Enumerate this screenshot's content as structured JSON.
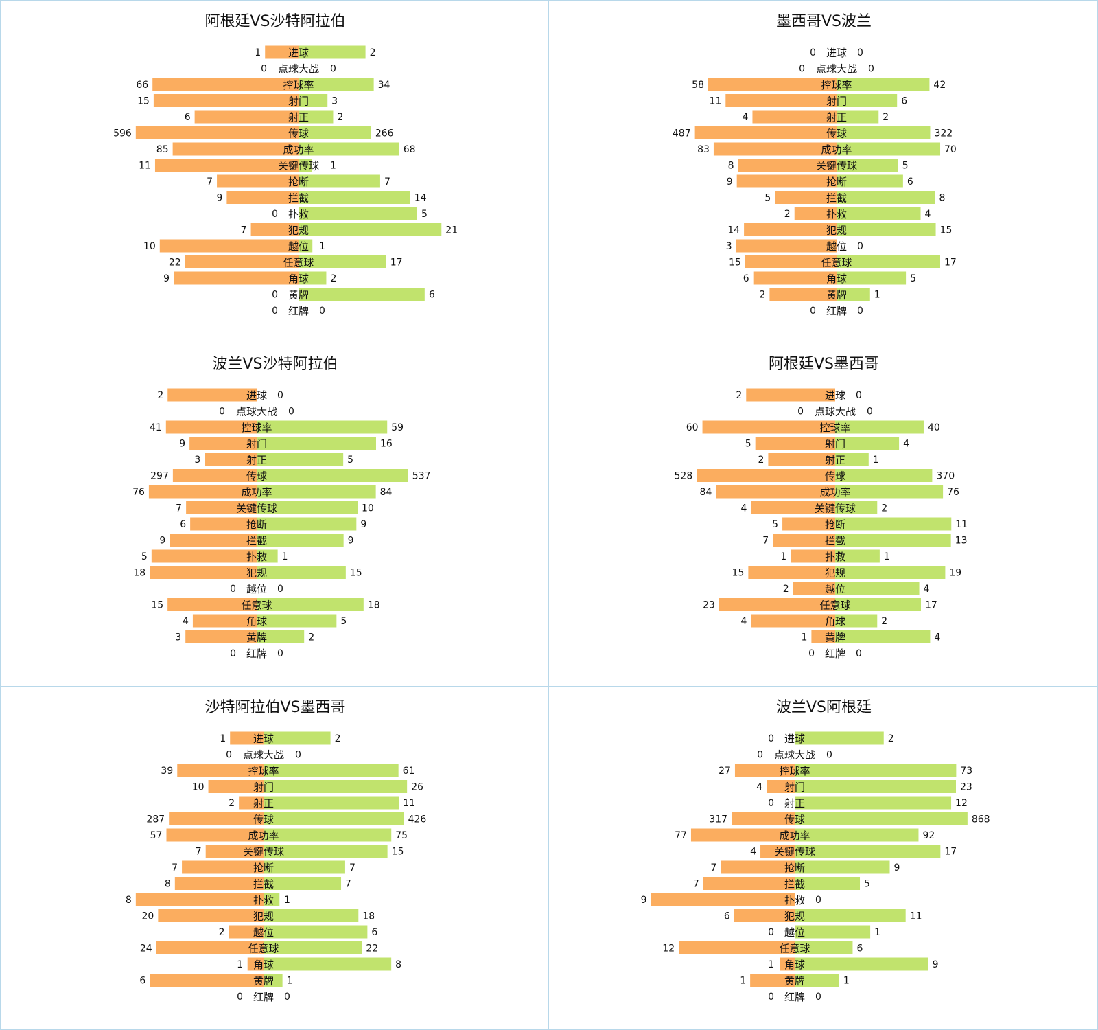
{
  "colors": {
    "team1": "#fbad5f",
    "team2": "#c1e36d",
    "border": "#b8d8ea"
  },
  "chart_data": [
    {
      "type": "bar",
      "title": "阿根廷VS沙特阿拉伯",
      "categories": [
        "进球",
        "点球大战",
        "控球率",
        "射门",
        "射正",
        "传球",
        "成功率",
        "关键传球",
        "抢断",
        "拦截",
        "扑救",
        "犯规",
        "越位",
        "任意球",
        "角球",
        "黄牌",
        "红牌"
      ],
      "series": [
        {
          "values": [
            1,
            0,
            66,
            15,
            6,
            596,
            85,
            11,
            7,
            9,
            0,
            7,
            10,
            22,
            9,
            0,
            0
          ]
        },
        {
          "values": [
            2,
            0,
            34,
            3,
            2,
            266,
            68,
            1,
            7,
            14,
            5,
            21,
            1,
            17,
            2,
            6,
            0
          ]
        }
      ]
    },
    {
      "type": "bar",
      "title": "墨西哥VS波兰",
      "categories": [
        "进球",
        "点球大战",
        "控球率",
        "射门",
        "射正",
        "传球",
        "成功率",
        "关键传球",
        "抢断",
        "拦截",
        "扑救",
        "犯规",
        "越位",
        "任意球",
        "角球",
        "黄牌",
        "红牌"
      ],
      "series": [
        {
          "values": [
            0,
            0,
            58,
            11,
            4,
            487,
            83,
            8,
            9,
            5,
            2,
            14,
            3,
            15,
            6,
            2,
            0
          ]
        },
        {
          "values": [
            0,
            0,
            42,
            6,
            2,
            322,
            70,
            5,
            6,
            8,
            4,
            15,
            0,
            17,
            5,
            1,
            0
          ]
        }
      ]
    },
    {
      "type": "bar",
      "title": "波兰VS沙特阿拉伯",
      "categories": [
        "进球",
        "点球大战",
        "控球率",
        "射门",
        "射正",
        "传球",
        "成功率",
        "关键传球",
        "抢断",
        "拦截",
        "扑救",
        "犯规",
        "越位",
        "任意球",
        "角球",
        "黄牌",
        "红牌"
      ],
      "series": [
        {
          "values": [
            2,
            0,
            41,
            9,
            3,
            297,
            76,
            7,
            6,
            9,
            5,
            18,
            0,
            15,
            4,
            3,
            0
          ]
        },
        {
          "values": [
            0,
            0,
            59,
            16,
            5,
            537,
            84,
            10,
            9,
            9,
            1,
            15,
            0,
            18,
            5,
            2,
            0
          ]
        }
      ]
    },
    {
      "type": "bar",
      "title": "阿根廷VS墨西哥",
      "categories": [
        "进球",
        "点球大战",
        "控球率",
        "射门",
        "射正",
        "传球",
        "成功率",
        "关键传球",
        "抢断",
        "拦截",
        "扑救",
        "犯规",
        "越位",
        "任意球",
        "角球",
        "黄牌",
        "红牌"
      ],
      "series": [
        {
          "values": [
            2,
            0,
            60,
            5,
            2,
            528,
            84,
            4,
            5,
            7,
            1,
            15,
            2,
            23,
            4,
            1,
            0
          ]
        },
        {
          "values": [
            0,
            0,
            40,
            4,
            1,
            370,
            76,
            2,
            11,
            13,
            1,
            19,
            4,
            17,
            2,
            4,
            0
          ]
        }
      ]
    },
    {
      "type": "bar",
      "title": "沙特阿拉伯VS墨西哥",
      "categories": [
        "进球",
        "点球大战",
        "控球率",
        "射门",
        "射正",
        "传球",
        "成功率",
        "关键传球",
        "抢断",
        "拦截",
        "扑救",
        "犯规",
        "越位",
        "任意球",
        "角球",
        "黄牌",
        "红牌"
      ],
      "series": [
        {
          "values": [
            1,
            0,
            39,
            10,
            2,
            287,
            57,
            7,
            7,
            8,
            8,
            20,
            2,
            24,
            1,
            6,
            0
          ]
        },
        {
          "values": [
            2,
            0,
            61,
            26,
            11,
            426,
            75,
            15,
            7,
            7,
            1,
            18,
            6,
            22,
            8,
            1,
            0
          ]
        }
      ]
    },
    {
      "type": "bar",
      "title": "波兰VS阿根廷",
      "categories": [
        "进球",
        "点球大战",
        "控球率",
        "射门",
        "射正",
        "传球",
        "成功率",
        "关键传球",
        "抢断",
        "拦截",
        "扑救",
        "犯规",
        "越位",
        "任意球",
        "角球",
        "黄牌",
        "红牌"
      ],
      "series": [
        {
          "values": [
            0,
            0,
            27,
            4,
            0,
            317,
            77,
            4,
            7,
            7,
            9,
            6,
            0,
            12,
            1,
            1,
            0
          ]
        },
        {
          "values": [
            2,
            0,
            73,
            23,
            12,
            868,
            92,
            17,
            9,
            5,
            0,
            11,
            1,
            6,
            9,
            1,
            0
          ]
        }
      ]
    }
  ]
}
